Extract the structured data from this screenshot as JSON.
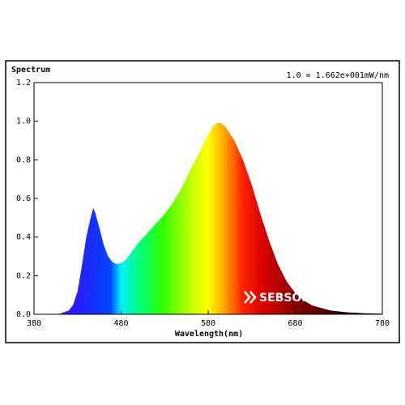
{
  "chart_data": {
    "type": "line",
    "title": "Spectrum",
    "subtitle": "1.0 = 1.662e+001mW/nm",
    "x_label": "Wavelength(nm)",
    "watermark": "SEBSON",
    "x": [
      380,
      400,
      410,
      420,
      425,
      430,
      435,
      440,
      445,
      448,
      450,
      455,
      460,
      465,
      470,
      475,
      480,
      485,
      490,
      495,
      500,
      510,
      520,
      530,
      540,
      550,
      560,
      570,
      580,
      585,
      590,
      595,
      600,
      610,
      620,
      630,
      640,
      650,
      660,
      670,
      680,
      690,
      700,
      720,
      740,
      760,
      780
    ],
    "values": [
      0,
      0,
      0.003,
      0.02,
      0.05,
      0.12,
      0.25,
      0.4,
      0.5,
      0.55,
      0.53,
      0.45,
      0.36,
      0.3,
      0.27,
      0.26,
      0.265,
      0.28,
      0.31,
      0.34,
      0.37,
      0.42,
      0.47,
      0.52,
      0.58,
      0.66,
      0.75,
      0.84,
      0.93,
      0.97,
      0.99,
      0.99,
      0.97,
      0.9,
      0.8,
      0.67,
      0.52,
      0.38,
      0.26,
      0.17,
      0.11,
      0.07,
      0.045,
      0.02,
      0.01,
      0.005,
      0.003
    ],
    "xlim": [
      380,
      780
    ],
    "xticks": [
      380,
      480,
      580,
      680,
      780
    ],
    "ylim": [
      0,
      1.2
    ],
    "yticks": [
      {
        "value": 0,
        "label": "0.0"
      },
      0.2,
      0.4,
      0.6,
      0.8,
      {
        "value": 1,
        "label": "1.0"
      },
      1.2
    ]
  }
}
